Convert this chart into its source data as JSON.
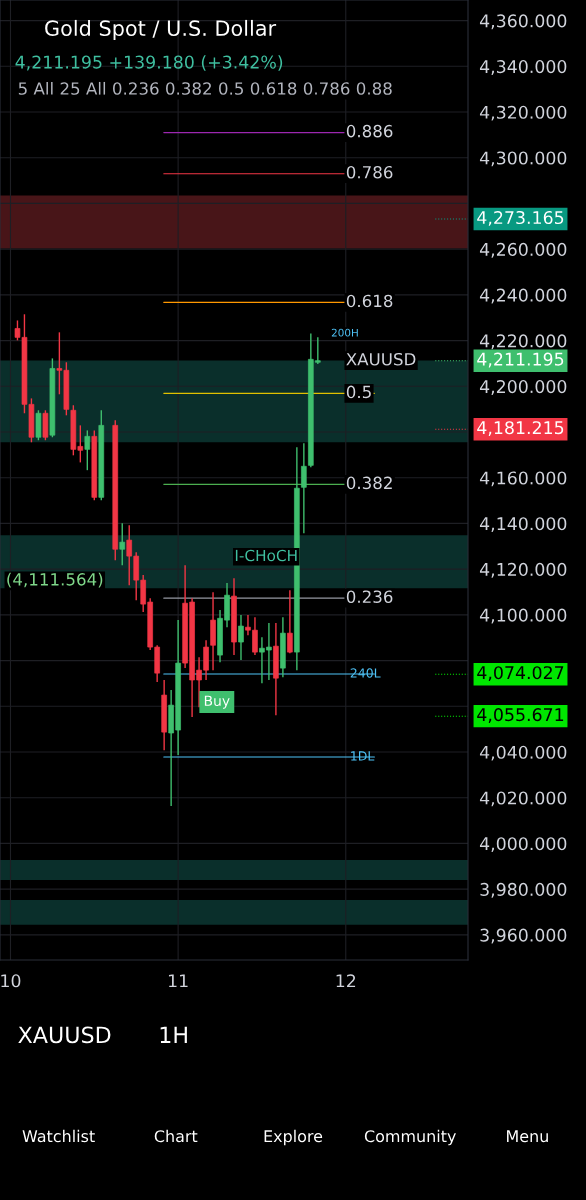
{
  "chart_data": {
    "type": "candlestick",
    "title": "Gold Spot / U.S. Dollar",
    "subtitle": "4,211.195 +139.180 (+3.42%)",
    "categories": [
      null,
      "10",
      null,
      null,
      null,
      null,
      null,
      null,
      null,
      null,
      null,
      null,
      null,
      null,
      null,
      null,
      null,
      null,
      null,
      null,
      null,
      null,
      null,
      null,
      null,
      "11",
      null,
      null,
      null,
      null,
      null,
      null,
      null,
      null,
      null,
      null,
      null,
      null,
      null,
      null,
      null,
      null,
      null,
      null,
      null,
      null,
      null,
      null,
      null,
      "12",
      null,
      null,
      null,
      null,
      null,
      null,
      null,
      null,
      null,
      null,
      null,
      null,
      null,
      null,
      null,
      null,
      null
    ],
    "ohlc": [
      null,
      null,
      [
        4225.3,
        4228.8,
        4220.1,
        4221.4
      ],
      [
        4221.4,
        4231.5,
        4188.2,
        4192.1
      ],
      [
        4192.1,
        4194.7,
        4175.5,
        4177.7
      ],
      [
        4177.7,
        4189.5,
        4176.4,
        4188.2
      ],
      [
        4188.2,
        4189.5,
        4176.4,
        4177.7
      ],
      [
        4178.6,
        4212.2,
        4177.7,
        4207.8
      ],
      [
        4207.8,
        4223.6,
        4196.5,
        4207.0
      ],
      [
        4207.0,
        4210.5,
        4187.3,
        4189.9
      ],
      [
        4189.5,
        4191.7,
        4169.8,
        4172.4
      ],
      [
        4173.7,
        4182.9,
        4166.7,
        4172.0
      ],
      [
        4172.4,
        4180.7,
        4163.3,
        4178.1
      ],
      [
        4178.1,
        4180.7,
        4150.1,
        4151.4
      ],
      [
        4151.4,
        4189.5,
        4150.1,
        4182.9
      ],
      null,
      [
        4182.9,
        4185.1,
        4123.9,
        4128.7
      ],
      [
        4128.7,
        4140.1,
        4121.7,
        4131.8
      ],
      [
        4132.7,
        4139.2,
        4113.0,
        4125.7
      ],
      [
        4125.7,
        4127.4,
        4106.4,
        4115.2
      ],
      [
        4115.2,
        4117.4,
        4101.2,
        4104.7
      ],
      [
        4105.6,
        4107.3,
        4084.6,
        4085.9
      ],
      [
        4085.9,
        4086.7,
        4070.6,
        4074.5
      ],
      [
        4064.9,
        4071.5,
        4040.8,
        4048.7
      ],
      [
        4048.3,
        4067.1,
        4016.4,
        4060.5
      ],
      [
        4049.6,
        4097.7,
        4038.7,
        4078.9
      ],
      [
        4105.1,
        4121.7,
        4076.7,
        4078.9
      ],
      [
        4105.6,
        4107.3,
        4055.3,
        4071.5
      ],
      [
        4075.8,
        4081.5,
        4059.6,
        4071.5
      ],
      [
        4085.9,
        4088.9,
        4071.5,
        4075.8
      ],
      [
        4097.7,
        4109.9,
        4075.8,
        4086.7
      ],
      [
        4082.4,
        4102.1,
        4079.3,
        4098.5
      ],
      [
        4097.7,
        4113.9,
        4094.6,
        4108.6
      ],
      [
        4108.2,
        4116.0,
        4082.4,
        4088.1
      ],
      [
        4088.1,
        4099.9,
        4080.2,
        4095.1
      ],
      [
        4094.6,
        4099.9,
        4091.1,
        4093.3
      ],
      [
        4093.3,
        4099.0,
        4082.4,
        4083.7
      ],
      [
        4083.7,
        4090.2,
        4070.1,
        4085.4
      ],
      [
        4084.6,
        4096.4,
        4071.5,
        4085.9
      ],
      [
        4086.3,
        4096.4,
        4056.1,
        4072.3
      ],
      [
        4076.7,
        4099.0,
        4072.7,
        4092.0
      ],
      [
        4092.0,
        4110.8,
        4083.2,
        4083.7
      ],
      [
        4083.7,
        4173.3,
        4075.8,
        4155.4
      ],
      [
        4155.8,
        4175.1,
        4135.7,
        4165.0
      ],
      [
        4165.4,
        4223.1,
        4164.6,
        4211.8
      ],
      [
        4210.5,
        4221.4,
        4209.8,
        4211.195
      ],
      null,
      null,
      null,
      null,
      null,
      null,
      null,
      null,
      null,
      null,
      null,
      null,
      null,
      null,
      null,
      null,
      null,
      null,
      null,
      null,
      null
    ],
    "ylim": [
      3949,
      4369
    ],
    "yticks": [
      {
        "value": 3960,
        "label": "3,960.000"
      },
      {
        "value": 3980,
        "label": "3,980.000"
      },
      {
        "value": 4000,
        "label": "4,000.000"
      },
      {
        "value": 4020,
        "label": "4,020.000"
      },
      {
        "value": 4040,
        "label": "4,040.000"
      },
      {
        "value": 4060,
        "label": null
      },
      {
        "value": 4080,
        "label": null
      },
      {
        "value": 4100,
        "label": "4,100.000"
      },
      {
        "value": 4120,
        "label": "4,120.000"
      },
      {
        "value": 4140,
        "label": "4,140.000"
      },
      {
        "value": 4160,
        "label": "4,160.000"
      },
      {
        "value": 4180,
        "label": null
      },
      {
        "value": 4200,
        "label": "4,200.000"
      },
      {
        "value": 4220,
        "label": "4,220.000"
      },
      {
        "value": 4240,
        "label": "4,240.000"
      },
      {
        "value": 4260,
        "label": "4,260.000"
      },
      {
        "value": 4280,
        "label": null
      },
      {
        "value": 4300,
        "label": "4,300.000"
      },
      {
        "value": 4320,
        "label": "4,320.000"
      },
      {
        "value": 4340,
        "label": "4,340.000"
      },
      {
        "value": 4360,
        "label": "4,360.000"
      }
    ],
    "grid": true,
    "ref_lines": [
      {
        "axis": "y",
        "value": 4311,
        "color": "#9c27b0"
      },
      {
        "axis": "y",
        "value": 4293,
        "color": "#f23645"
      },
      {
        "axis": "y",
        "value": 4236.7,
        "color": "#ff9800"
      },
      {
        "axis": "y",
        "value": 4196.9,
        "color": "#e0c000"
      },
      {
        "axis": "y",
        "value": 4157.1,
        "color": "#4caf50"
      },
      {
        "axis": "y",
        "value": 4107.3,
        "color": "#9598a1"
      },
      {
        "axis": "y",
        "value": 4074.1,
        "label": "240L",
        "color": "#4fc3f7"
      },
      {
        "axis": "y",
        "value": 4037.8,
        "label": "1DL",
        "color": "#4fc3f7"
      },
      {
        "axis": "y",
        "value": 4273.165,
        "label": "4,273.165",
        "color": "#089981",
        "line_style": "dotted"
      },
      {
        "axis": "y",
        "value": 4211.195,
        "label": "4,211.195",
        "color": "#3fbf6e",
        "line_style": "dotted"
      },
      {
        "axis": "y",
        "value": 4181.215,
        "label": "4,181.215",
        "color": "#f23645",
        "line_style": "dotted"
      },
      {
        "axis": "y",
        "value": 4074.027,
        "label": "4,074.027",
        "color": "#00e600",
        "line_style": "dotted"
      },
      {
        "axis": "y",
        "value": 4055.671,
        "label": "4,055.671",
        "color": "#00e600",
        "line_style": "dotted"
      }
    ],
    "bands": [
      {
        "axis": "y",
        "from": 4260.3,
        "to": 4283.5,
        "color": "#5a1a1e"
      },
      {
        "axis": "y",
        "from": 4175.5,
        "to": 4211.3,
        "color": "#0d3b36"
      },
      {
        "axis": "y",
        "from": 4111.6,
        "to": 4134.8,
        "color": "#0d3b36"
      },
      {
        "axis": "y",
        "from": 3984.0,
        "to": 3992.7,
        "color": "#0d3b36"
      },
      {
        "axis": "y",
        "from": 3964.4,
        "to": 3975.3,
        "color": "#0d3b36"
      }
    ],
    "annotations": [
      "5 All 25 All 0.236 0.382 0.5 0.618 0.786 0.88",
      "XAUUSD",
      "1H",
      "Watchlist",
      "Chart",
      "Explore",
      "Community",
      "Menu",
      "200H",
      "I-CHoCH",
      "(4,111.564)",
      "Buy",
      {
        "text": "XAUUSD",
        "x": "12",
        "y": 4211.195
      },
      {
        "text": "0.886",
        "x": "12",
        "y": 4311
      },
      {
        "text": "0.786",
        "x": "12",
        "y": 4293
      },
      {
        "text": "0.618",
        "x": "12",
        "y": 4236.7
      },
      {
        "text": "0.5",
        "x": "12",
        "y": 4196.9
      },
      {
        "text": "0.382",
        "x": "12",
        "y": 4157.1
      },
      {
        "text": "0.236",
        "x": "12",
        "y": 4107.3
      }
    ]
  }
}
